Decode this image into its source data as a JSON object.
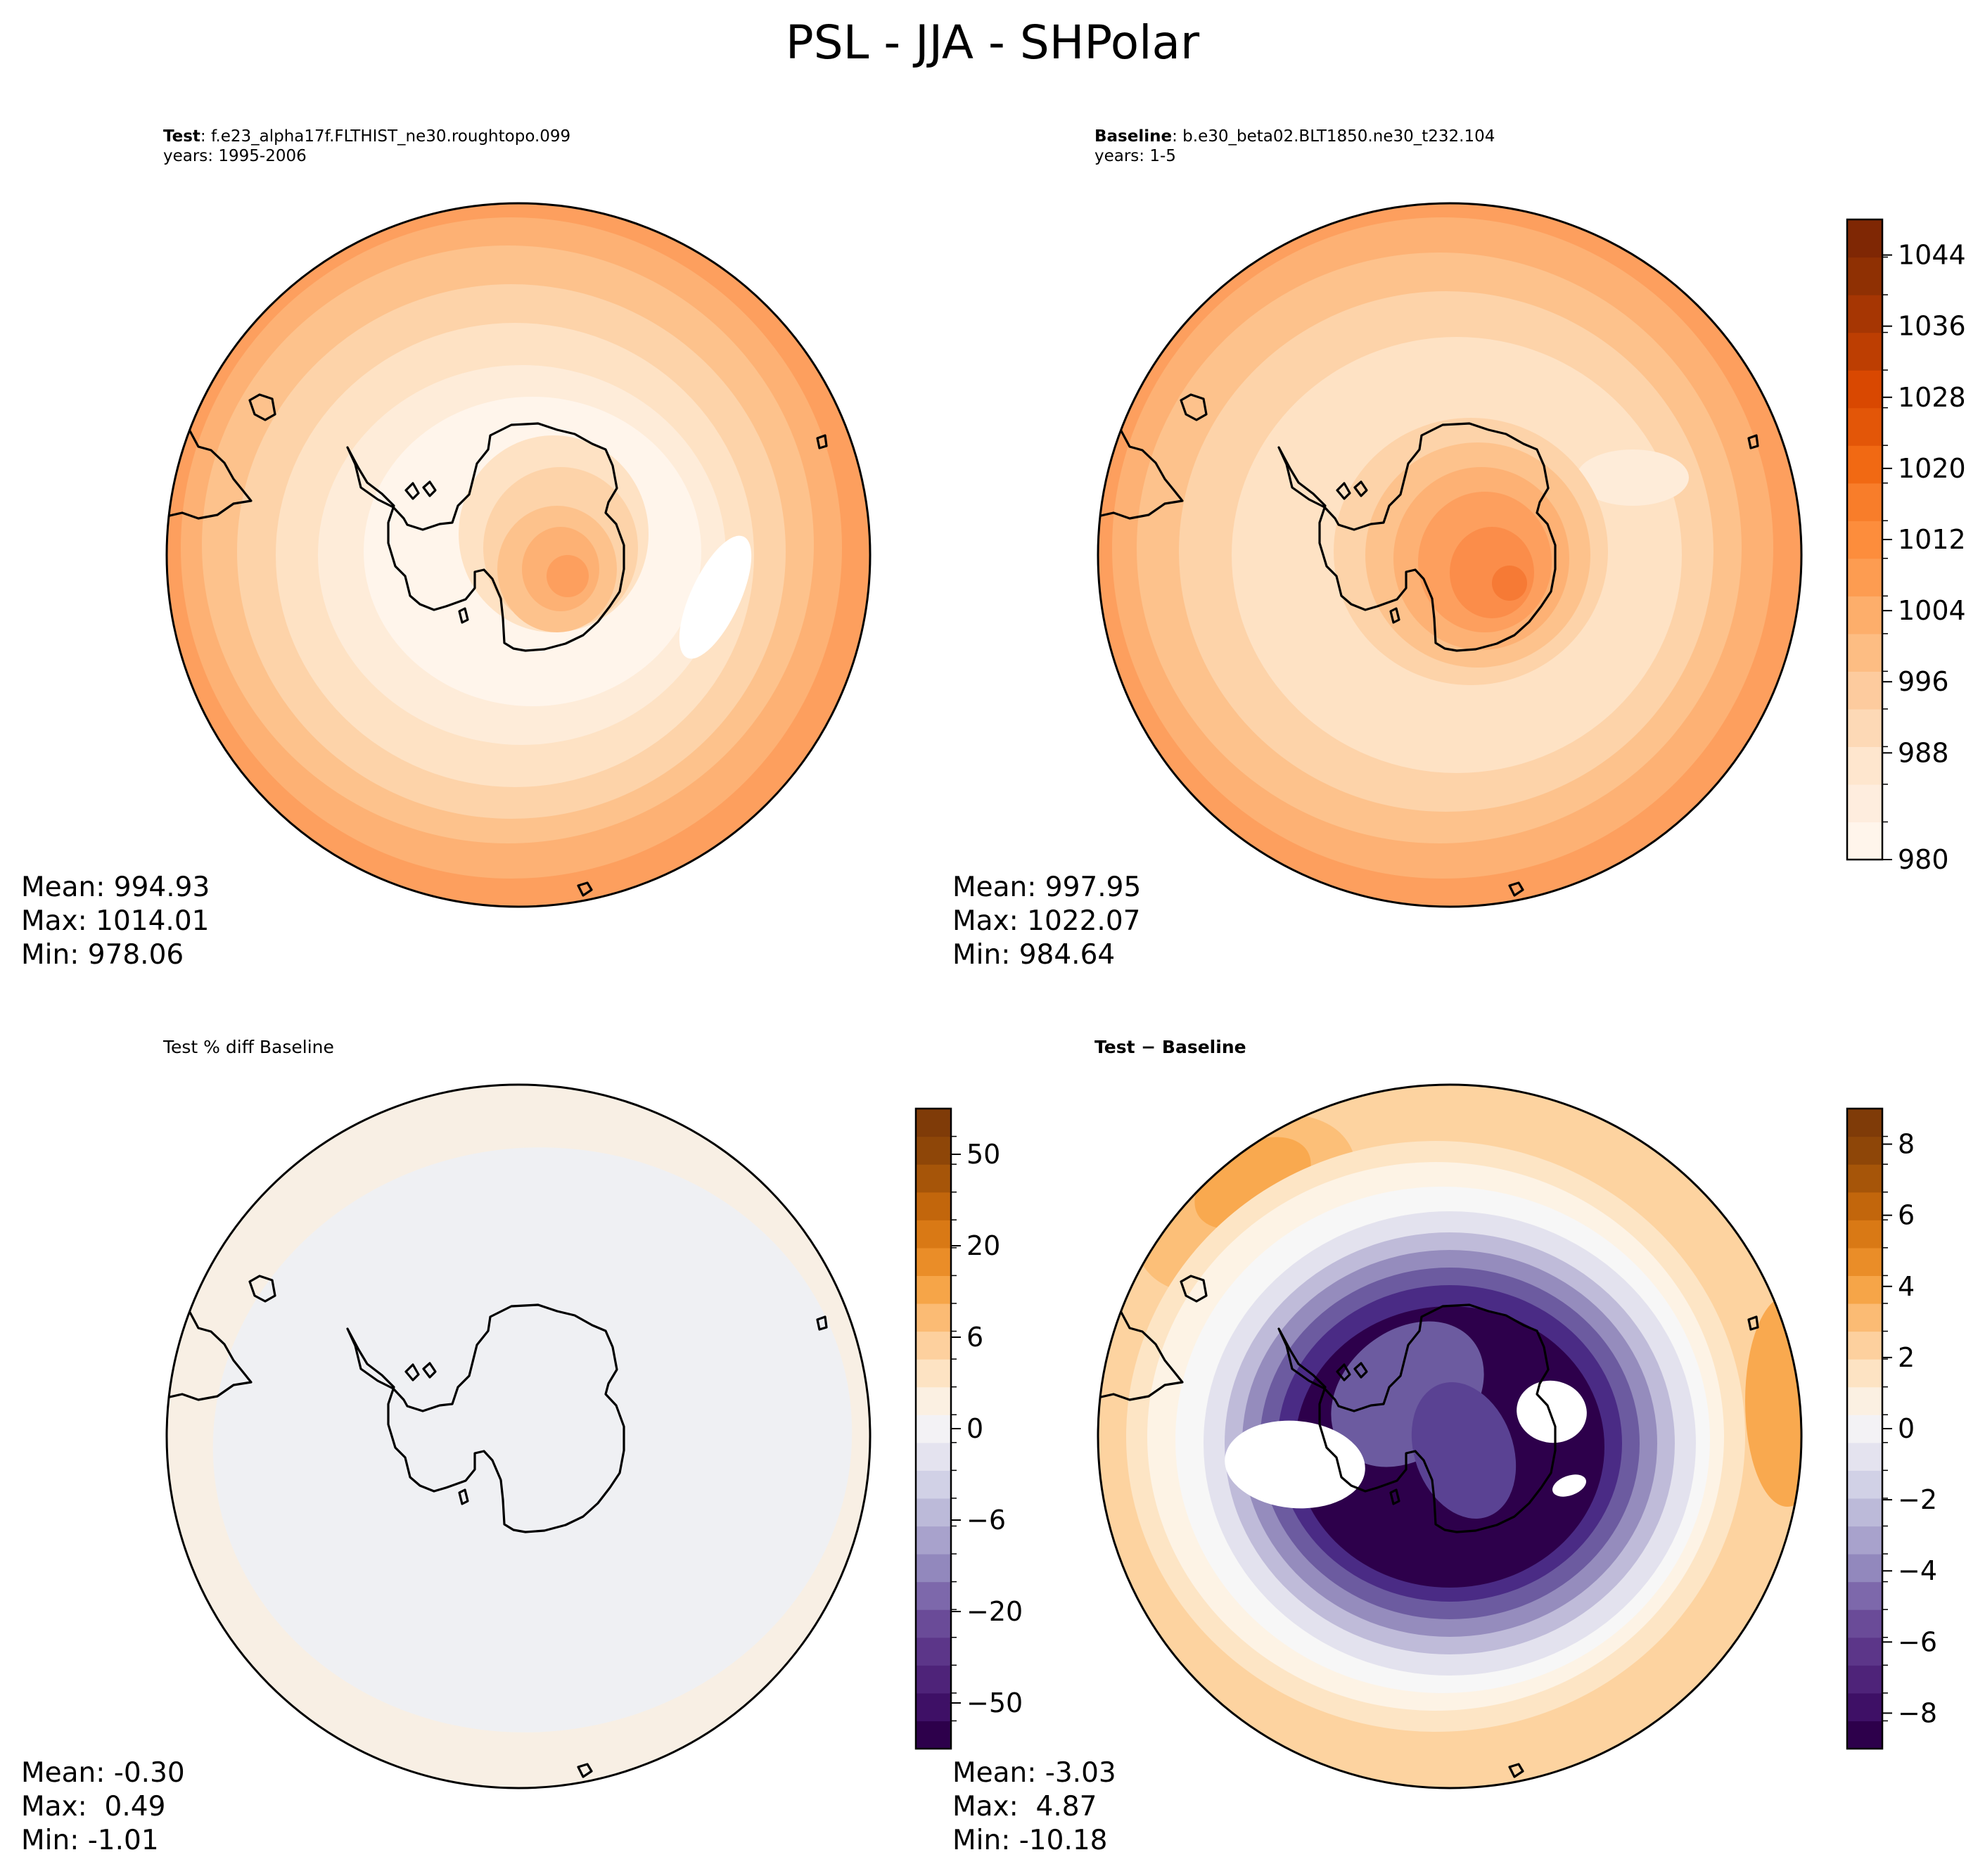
{
  "figure": {
    "title": "PSL - JJA - SHPolar"
  },
  "panels": {
    "test": {
      "label": "Test",
      "name": ": f.e23_alpha17f.FLTHIST_ne30.roughtopo.099",
      "years": "years: 1995-2006",
      "mean": "Mean: 994.93",
      "max": "Max: 1014.01",
      "min": "Min: 978.06"
    },
    "baseline": {
      "label": "Baseline",
      "name": ": b.e30_beta02.BLT1850.ne30_t232.104",
      "years": "years: 1-5",
      "mean": "Mean: 997.95",
      "max": "Max: 1022.07",
      "min": "Min: 984.64"
    },
    "pct_diff": {
      "caption": "Test % diff Baseline",
      "mean": "Mean: -0.30",
      "max": "Max:  0.49",
      "min": "Min: -1.01"
    },
    "diff": {
      "label_a": "Test",
      "label_sep": "−",
      "label_b": "Baseline",
      "mean": "Mean: -3.03",
      "max": "Max:  4.87",
      "min": "Min: -10.18"
    }
  },
  "colorbars": {
    "psl": {
      "labels": [
        "980",
        "988",
        "996",
        "1004",
        "1012",
        "1020",
        "1028",
        "1036",
        "1044"
      ]
    },
    "pct": {
      "labels": [
        "−50",
        "−20",
        "−6",
        "0",
        "6",
        "20",
        "50"
      ]
    },
    "diff": {
      "labels": [
        "−8",
        "−6",
        "−4",
        "−2",
        "0",
        "2",
        "4",
        "6",
        "8"
      ]
    }
  },
  "colors": {
    "oranges_low": "#fff5eb",
    "oranges_mid": "#fdae6b",
    "oranges_high": "#7f2704",
    "puor_neg": "#2d004b",
    "puor_zero": "#f7f7f7",
    "puor_pos": "#7f3b08"
  },
  "chart_data": [
    {
      "type": "heatmap",
      "title": "Test",
      "variable": "PSL",
      "season": "JJA",
      "region": "SHPolar",
      "mean": 994.93,
      "max": 1014.01,
      "min": 978.06,
      "colorbar_range": [
        980,
        1048
      ]
    },
    {
      "type": "heatmap",
      "title": "Baseline",
      "variable": "PSL",
      "season": "JJA",
      "region": "SHPolar",
      "mean": 997.95,
      "max": 1022.07,
      "min": 984.64,
      "colorbar_range": [
        980,
        1048
      ]
    },
    {
      "type": "heatmap",
      "title": "Test % diff Baseline",
      "mean": -0.3,
      "max": 0.49,
      "min": -1.01,
      "colorbar_ticks": [
        -50,
        -20,
        -6,
        0,
        6,
        20,
        50
      ]
    },
    {
      "type": "heatmap",
      "title": "Test − Baseline",
      "mean": -3.03,
      "max": 4.87,
      "min": -10.18,
      "colorbar_range": [
        -9,
        8.5
      ]
    }
  ]
}
